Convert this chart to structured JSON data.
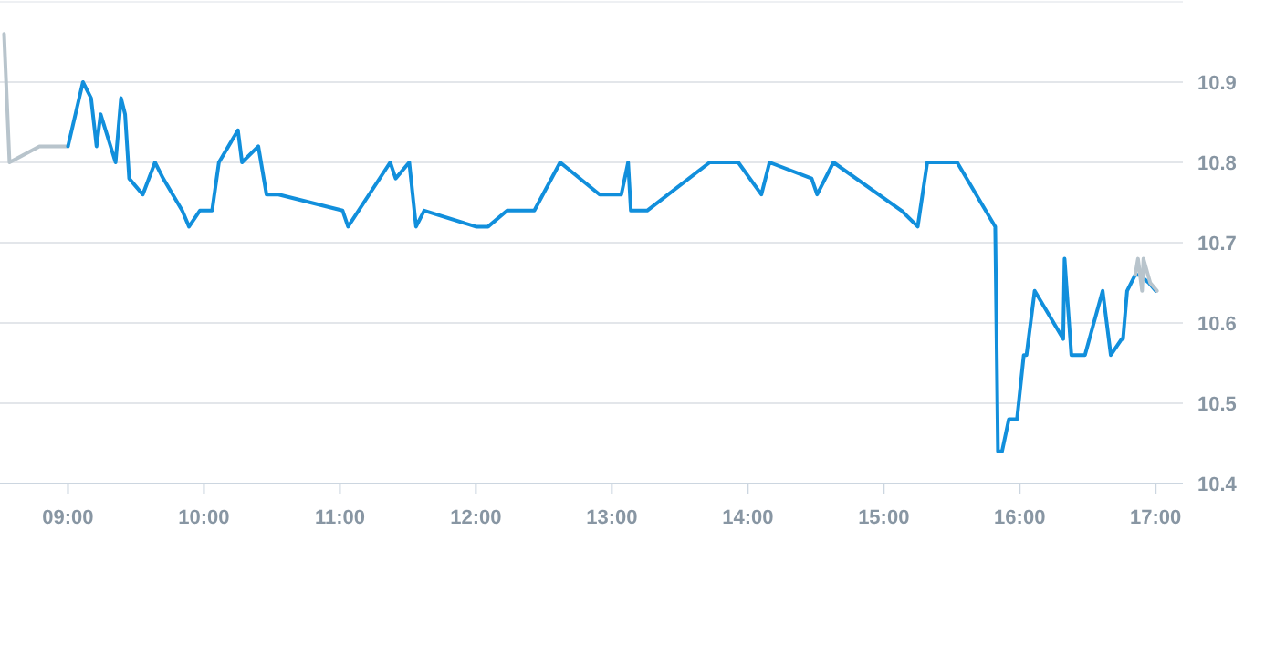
{
  "chart_data": {
    "type": "line",
    "xlim": [
      8.5,
      17.2
    ],
    "ylim": [
      10.4,
      11.0
    ],
    "xticks": [
      {
        "value": 9,
        "label": "09:00"
      },
      {
        "value": 10,
        "label": "10:00"
      },
      {
        "value": 11,
        "label": "11:00"
      },
      {
        "value": 12,
        "label": "12:00"
      },
      {
        "value": 13,
        "label": "13:00"
      },
      {
        "value": 14,
        "label": "14:00"
      },
      {
        "value": 15,
        "label": "15:00"
      },
      {
        "value": 16,
        "label": "16:00"
      },
      {
        "value": 17,
        "label": "17:00"
      }
    ],
    "yticks": [
      {
        "value": 10.4,
        "label": "10.4"
      },
      {
        "value": 10.5,
        "label": "10.5"
      },
      {
        "value": 10.6,
        "label": "10.6"
      },
      {
        "value": 10.7,
        "label": "10.7"
      },
      {
        "value": 10.8,
        "label": "10.8"
      },
      {
        "value": 10.9,
        "label": "10.9"
      }
    ],
    "grid": "y",
    "marker": "none",
    "line_style": "solid",
    "series": [
      {
        "color": "#b8c4cc",
        "x": [
          8.53,
          8.57,
          8.79,
          9.0
        ],
        "values": [
          10.96,
          10.8,
          10.82,
          10.82
        ]
      },
      {
        "color": "#118fdc",
        "x": [
          9.0,
          9.11,
          9.17,
          9.21,
          9.24,
          9.35,
          9.39,
          9.42,
          9.45,
          9.55,
          9.64,
          9.7,
          9.84,
          9.89,
          9.97,
          10.06,
          10.11,
          10.25,
          10.28,
          10.4,
          10.46,
          10.55,
          11.02,
          11.06,
          11.37,
          11.41,
          11.51,
          11.56,
          11.62,
          12.0,
          12.09,
          12.23,
          12.43,
          12.62,
          12.91,
          13.07,
          13.12,
          13.14,
          13.26,
          13.72,
          13.93,
          14.1,
          14.16,
          14.47,
          14.51,
          14.63,
          15.13,
          15.25,
          15.32,
          15.54,
          15.82,
          15.84,
          15.87,
          15.92,
          15.98,
          16.03,
          16.05,
          16.11,
          16.32,
          16.33,
          16.38,
          16.48,
          16.61,
          16.67,
          16.75,
          16.76,
          16.79,
          16.85,
          16.88,
          16.95,
          17.0
        ],
        "values": [
          10.82,
          10.9,
          10.88,
          10.82,
          10.86,
          10.8,
          10.88,
          10.86,
          10.78,
          10.76,
          10.8,
          10.78,
          10.74,
          10.72,
          10.74,
          10.74,
          10.8,
          10.84,
          10.8,
          10.82,
          10.76,
          10.76,
          10.74,
          10.72,
          10.8,
          10.78,
          10.8,
          10.72,
          10.74,
          10.72,
          10.72,
          10.74,
          10.74,
          10.8,
          10.76,
          10.76,
          10.8,
          10.74,
          10.74,
          10.8,
          10.8,
          10.76,
          10.8,
          10.78,
          10.76,
          10.8,
          10.74,
          10.72,
          10.8,
          10.8,
          10.72,
          10.44,
          10.44,
          10.48,
          10.48,
          10.56,
          10.56,
          10.64,
          10.58,
          10.68,
          10.56,
          10.56,
          10.64,
          10.56,
          10.58,
          10.58,
          10.64,
          10.66,
          10.66,
          10.65,
          10.64
        ]
      },
      {
        "color": "#b8c4cc",
        "x": [
          16.85,
          16.87,
          16.9,
          16.91,
          16.96,
          17.01
        ],
        "values": [
          10.66,
          10.68,
          10.64,
          10.68,
          10.65,
          10.64
        ]
      }
    ]
  }
}
